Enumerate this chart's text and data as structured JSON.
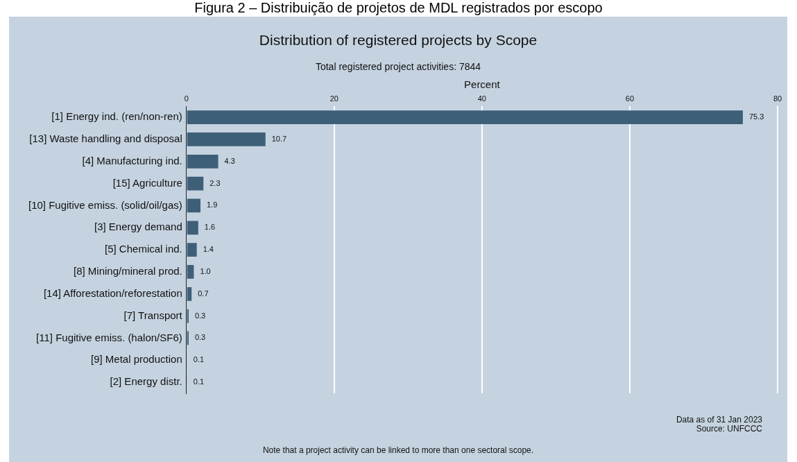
{
  "chart_data": {
    "type": "bar",
    "orientation": "horizontal",
    "title": "Distribution of registered projects by Scope",
    "subtitle": "Total registered project activities: 7844",
    "xlabel": "Percent",
    "categories": [
      "[1] Energy ind. (ren/non-ren)",
      "[13] Waste handling and disposal",
      "[4] Manufacturing ind.",
      "[15] Agriculture",
      "[10] Fugitive emiss. (solid/oil/gas)",
      "[3] Energy demand",
      "[5] Chemical ind.",
      "[8] Mining/mineral prod.",
      "[14] Afforestation/reforestation",
      "[7] Transport",
      "[11] Fugitive emiss. (halon/SF6)",
      "[9] Metal production",
      "[2] Energy distr."
    ],
    "values": [
      75.3,
      10.7,
      4.3,
      2.3,
      1.9,
      1.6,
      1.4,
      1.0,
      0.7,
      0.3,
      0.3,
      0.1,
      0.1
    ],
    "value_labels": [
      "75.3",
      "10.7",
      "4.3",
      "2.3",
      "1.9",
      "1.6",
      "1.4",
      "1.0",
      "0.7",
      "0.3",
      "0.3",
      "0.1",
      "0.1"
    ],
    "color": "#3e5f78",
    "xlim": [
      0,
      80
    ],
    "xticks": [
      0,
      20,
      40,
      60,
      80
    ],
    "grid": "x",
    "annotations": [
      "Figura 2 – Distribuição de projetos de MDL registrados por escopo",
      "Data as of 31 Jan 2023",
      "Source: UNFCCC",
      "Note that a project activity can be linked to more than one sectoral scope."
    ]
  }
}
